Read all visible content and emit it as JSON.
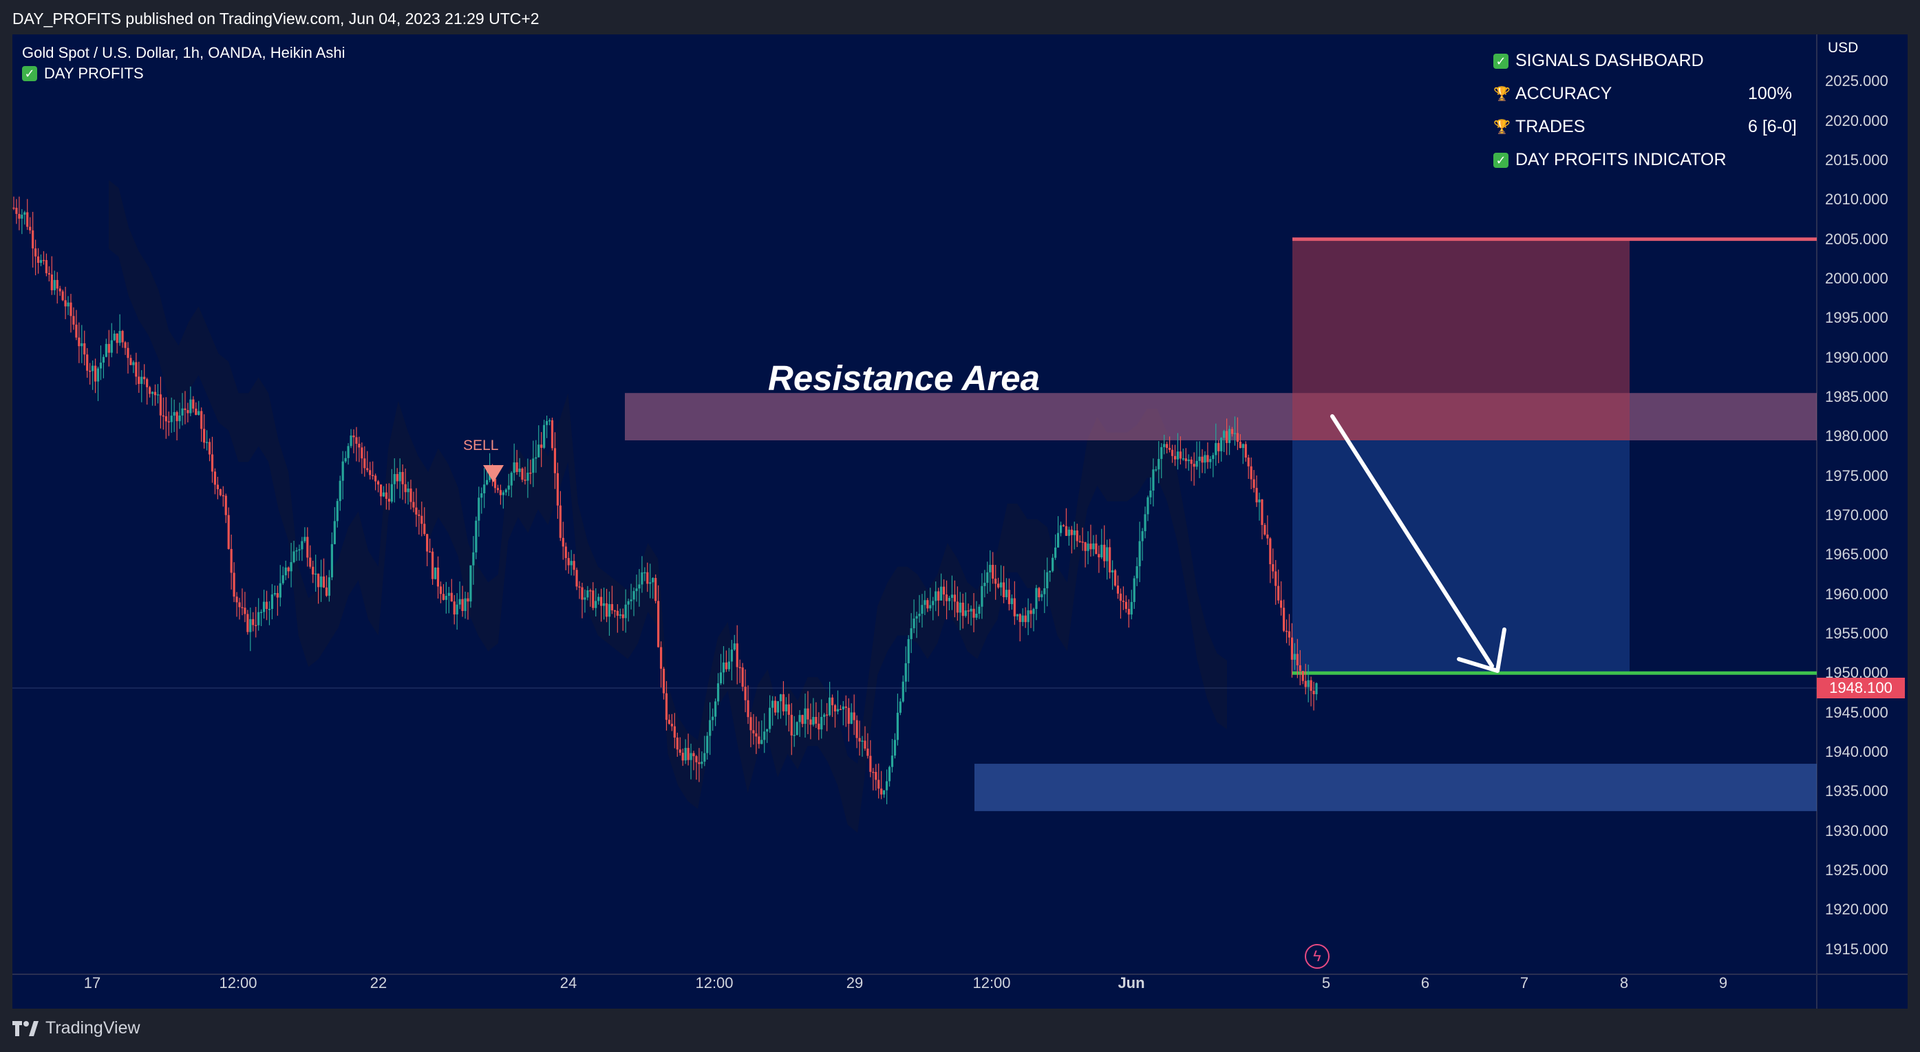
{
  "header": {
    "published": "DAY_PROFITS published on TradingView.com, Jun 04, 2023 21:29 UTC+2"
  },
  "legend": {
    "symbol": "Gold Spot / U.S. Dollar, 1h, OANDA, Heikin Ashi",
    "indicator": "DAY PROFITS"
  },
  "dashboard": {
    "title": "SIGNALS DASHBOARD",
    "accuracy_label": "ACCURACY",
    "accuracy_value": "100%",
    "trades_label": "TRADES",
    "trades_value": "6 [6-0]",
    "indicator_label": "DAY PROFITS INDICATOR"
  },
  "footer": {
    "brand": "TradingView"
  },
  "chart_data": {
    "type": "candlestick",
    "currency": "USD",
    "annotation": "Resistance Area",
    "signal": "SELL",
    "last_price": "1948.100",
    "y_ticks": [
      "2025.000",
      "2020.000",
      "2015.000",
      "2010.000",
      "2005.000",
      "2000.000",
      "1995.000",
      "1990.000",
      "1985.000",
      "1980.000",
      "1975.000",
      "1970.000",
      "1965.000",
      "1960.000",
      "1955.000",
      "1950.000",
      "1945.000",
      "1940.000",
      "1935.000",
      "1930.000",
      "1925.000",
      "1920.000",
      "1915.000"
    ],
    "x_ticks": [
      "17",
      "12:00",
      "22",
      "24",
      "12:00",
      "29",
      "12:00",
      "Jun",
      "5",
      "6",
      "7",
      "8",
      "9"
    ],
    "ylim": [
      1910,
      2030
    ],
    "resistance_zone": [
      1979.5,
      1985.5
    ],
    "support_zone": [
      1932.5,
      1938.5
    ],
    "stop_level": 2005,
    "target_level": 1950,
    "path": [
      2009,
      2008,
      2003,
      2000,
      1998,
      1995,
      1990,
      1988,
      1991,
      1993,
      1990,
      1987,
      1986,
      1982,
      1982,
      1984,
      1982,
      1976,
      1972,
      1960,
      1956,
      1957,
      1959,
      1961,
      1965,
      1967,
      1962,
      1960,
      1975,
      1981,
      1977,
      1974,
      1972,
      1975,
      1973,
      1970,
      1963,
      1960,
      1958,
      1959,
      1972,
      1975,
      1973,
      1976,
      1974,
      1978,
      1982,
      1968,
      1963,
      1960,
      1959,
      1958,
      1957,
      1959,
      1963,
      1961,
      1945,
      1941,
      1939,
      1938,
      1945,
      1951,
      1953,
      1946,
      1940,
      1945,
      1947,
      1942,
      1945,
      1943,
      1946,
      1946,
      1944,
      1941,
      1936,
      1935,
      1945,
      1955,
      1958,
      1960,
      1960,
      1959,
      1957,
      1959,
      1963,
      1961,
      1958,
      1957,
      1960,
      1962,
      1968,
      1968,
      1966,
      1966,
      1965,
      1960,
      1958,
      1968,
      1976,
      1979,
      1977,
      1977,
      1977,
      1978,
      1980,
      1980,
      1977,
      1972,
      1965,
      1957,
      1952,
      1949,
      1948.1
    ]
  }
}
